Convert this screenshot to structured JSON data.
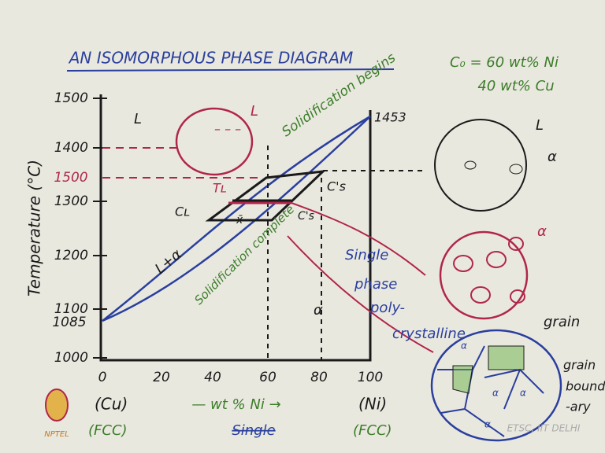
{
  "header": {
    "title": "AN ISOMORPHOUS PHASE DIAGRAM",
    "composition": [
      "C₀ = 60 wt% Ni",
      "40 wt% Cu"
    ]
  },
  "axes": {
    "y_label": "Temperature (°C)",
    "y_ticks": [
      "1500",
      "1400",
      "1300",
      "1200",
      "1100",
      "1000"
    ],
    "y_marks": [
      "1500",
      "1085"
    ],
    "x_ticks": [
      "0",
      "20",
      "40",
      "60",
      "80",
      "100"
    ],
    "x_label": "— wt % Ni →",
    "x_ends": [
      {
        "element": "(Cu)",
        "structure": "(FCC)"
      },
      {
        "element": "(Ni)",
        "structure": "(FCC)"
      }
    ],
    "x_note": "Single"
  },
  "diagram": {
    "regions": [
      "L",
      "L+α",
      "α"
    ],
    "melting_point": "1453",
    "labels": [
      "Solidification begins",
      "Solidification complete",
      "Tʟ",
      "Cʟ",
      "C's",
      "C's",
      "x̄"
    ]
  },
  "sketches": {
    "liquid": "L",
    "mixed": [
      "L",
      "α"
    ],
    "solid": "α",
    "polycrystal": [
      "Single",
      "phase",
      "poly-",
      "crystalline"
    ],
    "grain": "grain",
    "boundary": [
      "grain",
      "bound",
      "-ary"
    ],
    "grain_labels": [
      "α",
      "α",
      "α",
      "α"
    ]
  },
  "footer": {
    "logo": "NPTEL",
    "credit": "ETSC, IIT DELHI"
  }
}
